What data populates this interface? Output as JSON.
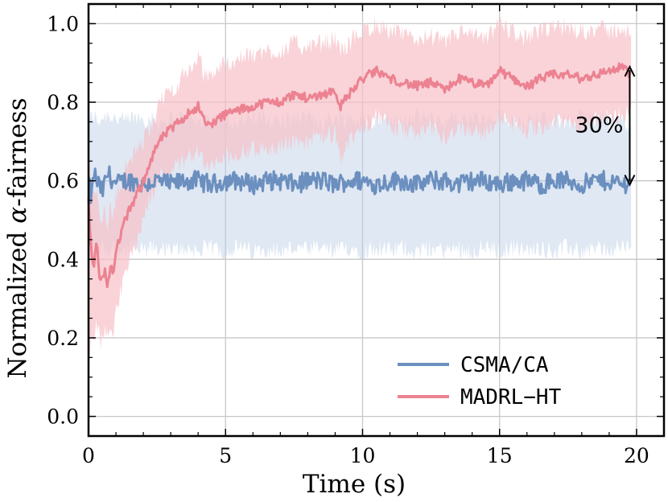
{
  "chart_data": {
    "type": "line",
    "title": "",
    "xlabel": "Time (s)",
    "ylabel_prefix": "Normalized ",
    "ylabel_symbol": "α",
    "ylabel_suffix": "-fairness",
    "xlim": [
      0,
      21
    ],
    "ylim": [
      -0.05,
      1.05
    ],
    "xticks": [
      0,
      5,
      10,
      15,
      20
    ],
    "yticks": [
      0.0,
      0.2,
      0.4,
      0.6,
      0.8,
      1.0
    ],
    "xtick_labels": [
      "0",
      "5",
      "10",
      "15",
      "20"
    ],
    "ytick_labels": [
      "0.0",
      "0.2",
      "0.4",
      "0.6",
      "0.8",
      "1.0"
    ],
    "grid": true,
    "legend_position": "bottom-right",
    "series": [
      {
        "name": "CSMA/CA",
        "color": "#6b8fbf",
        "band_color": "#b8cce4",
        "x": [
          0,
          0.1,
          0.2,
          0.3,
          0.5,
          0.7,
          1.0,
          1.3,
          1.6,
          2.0,
          2.5,
          3,
          3.5,
          4,
          4.5,
          5,
          5.5,
          6,
          6.5,
          7,
          7.5,
          8,
          8.5,
          9,
          9.5,
          10,
          10.5,
          11,
          11.5,
          12,
          12.5,
          13,
          13.5,
          14,
          14.5,
          15,
          15.5,
          16,
          16.5,
          17,
          17.5,
          18,
          18.5,
          19,
          19.5,
          19.8
        ],
        "y": [
          0.6,
          0.55,
          0.62,
          0.6,
          0.57,
          0.62,
          0.59,
          0.6,
          0.6,
          0.59,
          0.6,
          0.59,
          0.6,
          0.6,
          0.59,
          0.6,
          0.6,
          0.59,
          0.6,
          0.6,
          0.59,
          0.6,
          0.6,
          0.59,
          0.6,
          0.6,
          0.59,
          0.6,
          0.6,
          0.59,
          0.6,
          0.6,
          0.59,
          0.6,
          0.6,
          0.59,
          0.6,
          0.6,
          0.59,
          0.6,
          0.6,
          0.59,
          0.6,
          0.6,
          0.59,
          0.6
        ],
        "lower": [
          0.48,
          0.42,
          0.43,
          0.42,
          0.43,
          0.42,
          0.43,
          0.42,
          0.43,
          0.42,
          0.43,
          0.42,
          0.43,
          0.42,
          0.43,
          0.42,
          0.43,
          0.42,
          0.43,
          0.42,
          0.43,
          0.42,
          0.43,
          0.42,
          0.43,
          0.42,
          0.43,
          0.42,
          0.43,
          0.42,
          0.43,
          0.42,
          0.43,
          0.42,
          0.43,
          0.42,
          0.43,
          0.42,
          0.43,
          0.42,
          0.43,
          0.42,
          0.43,
          0.42,
          0.43,
          0.44
        ],
        "upper": [
          0.74,
          0.76,
          0.77,
          0.75,
          0.76,
          0.77,
          0.76,
          0.75,
          0.76,
          0.76,
          0.75,
          0.76,
          0.76,
          0.75,
          0.76,
          0.76,
          0.75,
          0.76,
          0.76,
          0.75,
          0.76,
          0.76,
          0.75,
          0.76,
          0.76,
          0.75,
          0.76,
          0.76,
          0.75,
          0.76,
          0.76,
          0.75,
          0.76,
          0.76,
          0.75,
          0.76,
          0.76,
          0.75,
          0.76,
          0.76,
          0.75,
          0.76,
          0.76,
          0.75,
          0.76,
          0.73
        ]
      },
      {
        "name": "MADRL−HT",
        "color": "#ec8291",
        "band_color": "#f7c1c8",
        "x": [
          0,
          0.1,
          0.2,
          0.3,
          0.4,
          0.5,
          0.6,
          0.7,
          0.8,
          0.9,
          1.0,
          1.2,
          1.4,
          1.6,
          1.8,
          2.0,
          2.2,
          2.5,
          2.8,
          3.0,
          3.3,
          3.6,
          4.0,
          4.3,
          4.6,
          5.0,
          5.5,
          6.0,
          6.5,
          7.0,
          7.5,
          8.0,
          8.5,
          9.0,
          9.2,
          9.5,
          10.0,
          10.5,
          11.0,
          11.5,
          12.0,
          12.5,
          13.0,
          13.5,
          14.0,
          14.5,
          15.0,
          15.5,
          16.0,
          16.5,
          17.0,
          17.5,
          18.0,
          18.5,
          19.0,
          19.5,
          19.8
        ],
        "y": [
          0.55,
          0.42,
          0.38,
          0.45,
          0.36,
          0.34,
          0.38,
          0.33,
          0.39,
          0.35,
          0.42,
          0.47,
          0.51,
          0.54,
          0.57,
          0.6,
          0.64,
          0.69,
          0.72,
          0.73,
          0.75,
          0.77,
          0.79,
          0.74,
          0.75,
          0.77,
          0.78,
          0.79,
          0.8,
          0.8,
          0.82,
          0.81,
          0.82,
          0.83,
          0.79,
          0.82,
          0.86,
          0.88,
          0.86,
          0.85,
          0.84,
          0.85,
          0.83,
          0.86,
          0.85,
          0.84,
          0.88,
          0.86,
          0.84,
          0.86,
          0.87,
          0.87,
          0.86,
          0.87,
          0.88,
          0.89,
          0.87
        ],
        "lower": [
          0.1,
          0.22,
          0.2,
          0.24,
          0.2,
          0.18,
          0.22,
          0.2,
          0.24,
          0.22,
          0.28,
          0.32,
          0.38,
          0.42,
          0.46,
          0.5,
          0.55,
          0.6,
          0.62,
          0.63,
          0.64,
          0.66,
          0.68,
          0.63,
          0.64,
          0.66,
          0.67,
          0.68,
          0.68,
          0.69,
          0.7,
          0.7,
          0.71,
          0.72,
          0.64,
          0.7,
          0.74,
          0.76,
          0.74,
          0.73,
          0.72,
          0.73,
          0.71,
          0.74,
          0.73,
          0.72,
          0.76,
          0.74,
          0.73,
          0.74,
          0.75,
          0.75,
          0.74,
          0.75,
          0.76,
          0.77,
          0.77
        ],
        "upper": [
          0.65,
          0.58,
          0.55,
          0.6,
          0.52,
          0.5,
          0.54,
          0.48,
          0.54,
          0.5,
          0.56,
          0.6,
          0.64,
          0.66,
          0.68,
          0.7,
          0.73,
          0.78,
          0.82,
          0.83,
          0.85,
          0.88,
          0.91,
          0.86,
          0.88,
          0.9,
          0.91,
          0.92,
          0.93,
          0.93,
          0.95,
          0.94,
          0.95,
          0.96,
          0.93,
          0.95,
          0.98,
          1.0,
          0.98,
          0.97,
          0.96,
          0.97,
          0.95,
          0.98,
          0.97,
          0.96,
          1.0,
          0.98,
          0.96,
          0.98,
          0.99,
          0.99,
          0.98,
          0.99,
          0.98,
          0.99,
          0.97
        ]
      }
    ],
    "annotations": [
      {
        "text": "30%",
        "x": 19.75,
        "y_top": 0.89,
        "y_bottom": 0.59,
        "arrow": "double"
      }
    ]
  }
}
